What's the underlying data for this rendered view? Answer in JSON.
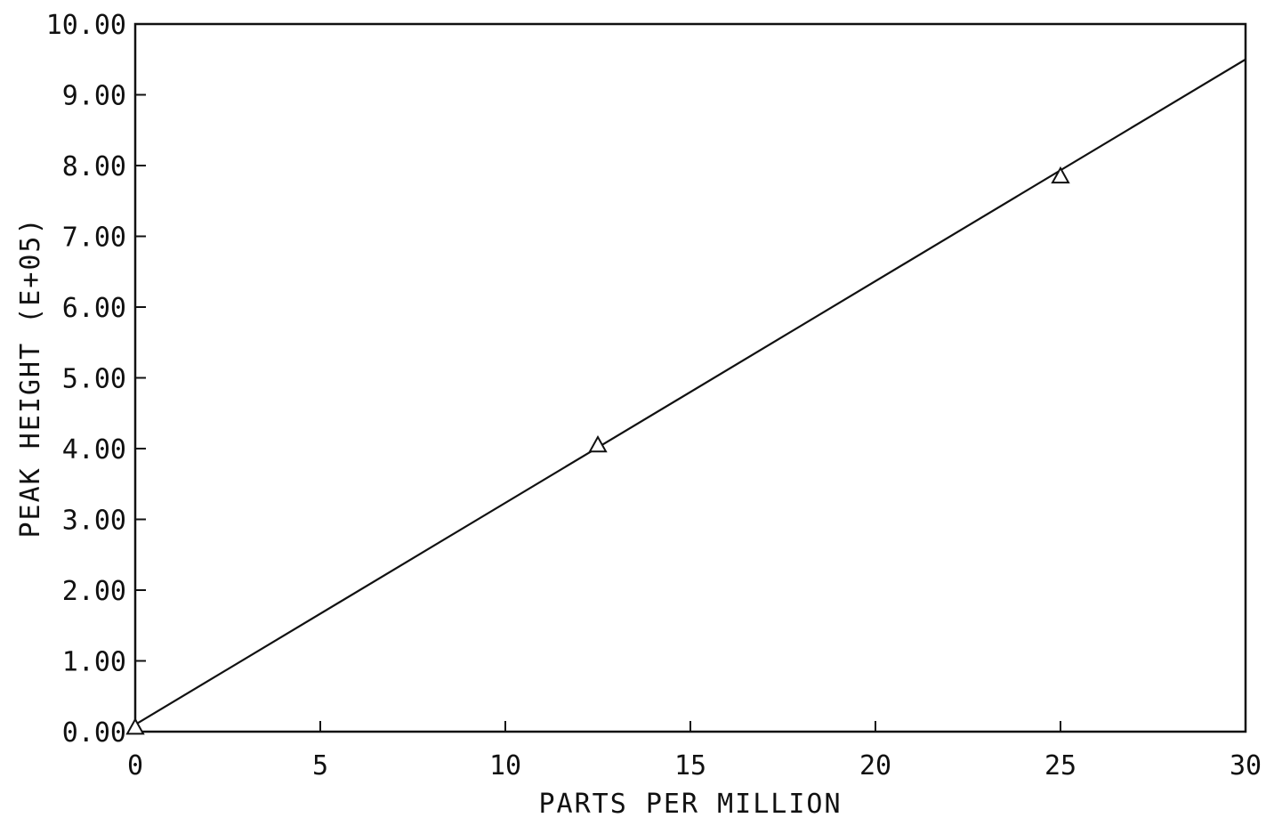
{
  "chart_data": {
    "type": "scatter",
    "title": "",
    "xlabel": "PARTS PER MILLION",
    "ylabel": "PEAK HEIGHT (E+05)",
    "xlim": [
      0,
      30
    ],
    "ylim": [
      0,
      10
    ],
    "x_ticks": [
      0,
      5,
      10,
      15,
      20,
      25,
      30
    ],
    "x_tick_labels": [
      "0",
      "5",
      "10",
      "15",
      "20",
      "25",
      "30"
    ],
    "y_ticks": [
      0,
      1,
      2,
      3,
      4,
      5,
      6,
      7,
      8,
      9,
      10
    ],
    "y_tick_labels": [
      "0.00",
      "1.00",
      "2.00",
      "3.00",
      "4.00",
      "5.00",
      "6.00",
      "7.00",
      "8.00",
      "9.00",
      "10.00"
    ],
    "grid": false,
    "series": [
      {
        "marker": "triangle",
        "x": [
          0,
          12.5,
          25
        ],
        "y": [
          0.06,
          4.05,
          7.85
        ]
      }
    ],
    "fit_line": {
      "x": [
        0,
        30
      ],
      "y": [
        0.1,
        9.5
      ]
    },
    "colors": {
      "line": "#111111",
      "marker": "#111111",
      "frame": "#111111"
    }
  }
}
